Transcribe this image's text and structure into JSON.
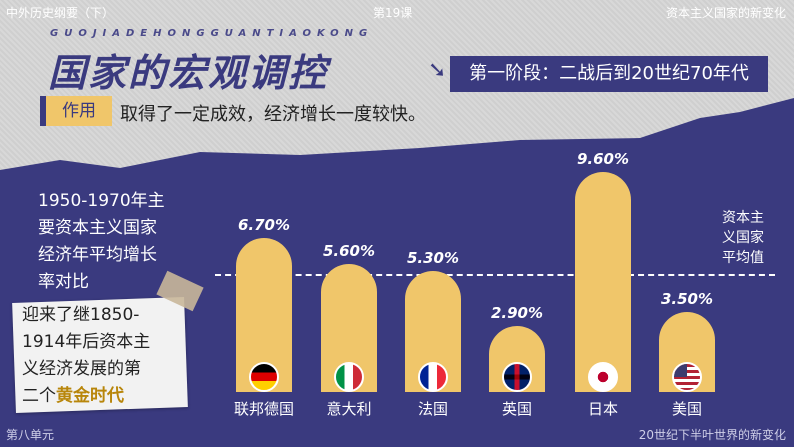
{
  "header": {
    "left": "中外历史纲要（下）",
    "center": "第19课",
    "right": "资本主义国家的新变化"
  },
  "title": {
    "pinyin": "GUOJIADEHONGGUANTIAOKONG",
    "main": "国家的宏观调控",
    "stage": "第一阶段：二战后到20世纪70年代"
  },
  "role": {
    "tag": "作用",
    "text": "取得了一定成效，经济增长一度较快。"
  },
  "left_desc": {
    "line1": "1950-1970年主",
    "line2": "要资本主义国家",
    "line3": "经济年平均增长",
    "line4": "率对比"
  },
  "note": {
    "line1": "迎来了继1850-",
    "line2": "1914年后资本主",
    "line3": "义经济发展的第",
    "line4_a": "二个",
    "line4_b": "黄金时代"
  },
  "avg_label": {
    "line1": "资本主",
    "line2": "义国家",
    "line3": "平均值"
  },
  "chart_data": {
    "type": "bar",
    "categories": [
      "联邦德国",
      "意大利",
      "法国",
      "英国",
      "日本",
      "美国"
    ],
    "values": [
      6.7,
      5.6,
      5.3,
      2.9,
      9.6,
      3.5
    ],
    "value_labels": [
      "6.70%",
      "5.60%",
      "5.30%",
      "2.90%",
      "9.60%",
      "3.50%"
    ],
    "color": "#f0c66a"
  },
  "footer": {
    "left": "第八单元",
    "right": "20世纪下半叶世界的新变化"
  }
}
